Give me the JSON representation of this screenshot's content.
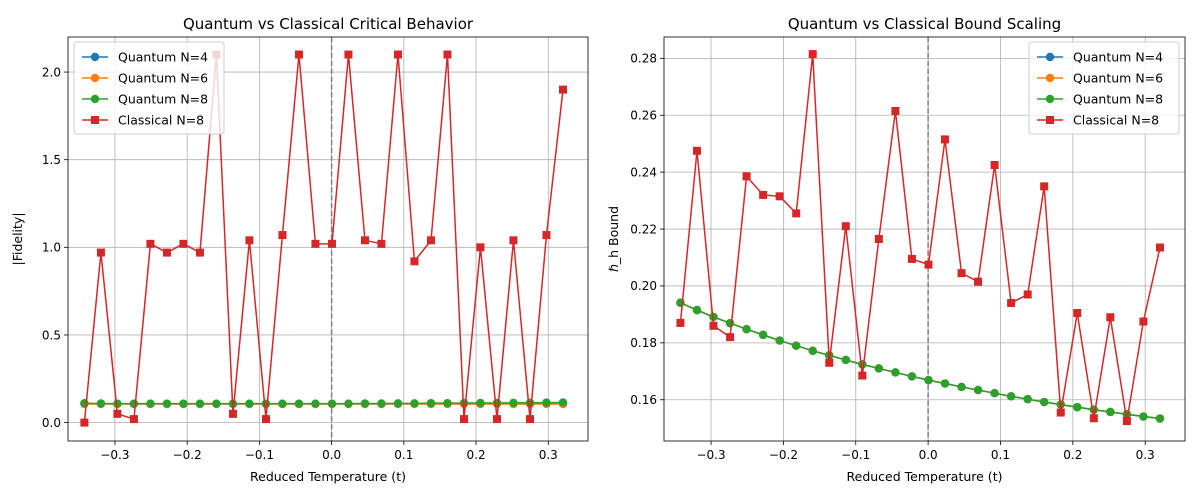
{
  "chart_data": [
    {
      "type": "line",
      "title": "Quantum vs Classical Critical Behavior",
      "xlabel": "Reduced Temperature (t)",
      "ylabel": "|Fidelity|",
      "xlim": [
        -0.365,
        0.355
      ],
      "ylim": [
        -0.105,
        2.2
      ],
      "xticks": [
        -0.3,
        -0.2,
        -0.1,
        0.0,
        0.1,
        0.2,
        0.3
      ],
      "xtick_labels": [
        "−0.3",
        "−0.2",
        "−0.1",
        "0.0",
        "0.1",
        "0.2",
        "0.3"
      ],
      "yticks": [
        0.0,
        0.5,
        1.0,
        1.5,
        2.0
      ],
      "ytick_labels": [
        "0.0",
        "0.5",
        "1.0",
        "1.5",
        "2.0"
      ],
      "grid": true,
      "vline_x": 0,
      "legend_position": "upper-left",
      "x": [
        -0.3423,
        -0.3194,
        -0.2966,
        -0.2737,
        -0.2509,
        -0.228,
        -0.2052,
        -0.1823,
        -0.1595,
        -0.1366,
        -0.1138,
        -0.0909,
        -0.0681,
        -0.0452,
        -0.0224,
        0.0005,
        0.0233,
        0.0462,
        0.069,
        0.0919,
        0.1147,
        0.1376,
        0.1604,
        0.1833,
        0.2061,
        0.229,
        0.2518,
        0.2747,
        0.2975,
        0.3204
      ],
      "series": [
        {
          "name": "Quantum N=4",
          "color": "#1f77b4",
          "marker": "circle",
          "values": [
            0.11,
            0.107,
            0.107,
            0.107,
            0.107,
            0.107,
            0.107,
            0.107,
            0.107,
            0.107,
            0.107,
            0.107,
            0.107,
            0.107,
            0.107,
            0.107,
            0.107,
            0.107,
            0.107,
            0.107,
            0.107,
            0.107,
            0.107,
            0.107,
            0.107,
            0.107,
            0.107,
            0.107,
            0.107,
            0.107
          ]
        },
        {
          "name": "Quantum N=6",
          "color": "#ff7f0e",
          "marker": "circle",
          "values": [
            0.106,
            0.106,
            0.106,
            0.106,
            0.106,
            0.106,
            0.106,
            0.106,
            0.106,
            0.106,
            0.106,
            0.106,
            0.106,
            0.106,
            0.106,
            0.106,
            0.106,
            0.106,
            0.106,
            0.106,
            0.106,
            0.106,
            0.106,
            0.106,
            0.106,
            0.106,
            0.106,
            0.106,
            0.106,
            0.106
          ]
        },
        {
          "name": "Quantum N=8",
          "color": "#2ca02c",
          "marker": "circle",
          "values": [
            0.11,
            0.109,
            0.108,
            0.108,
            0.108,
            0.108,
            0.108,
            0.108,
            0.108,
            0.108,
            0.108,
            0.108,
            0.108,
            0.108,
            0.108,
            0.108,
            0.108,
            0.109,
            0.109,
            0.11,
            0.11,
            0.111,
            0.111,
            0.112,
            0.112,
            0.112,
            0.113,
            0.113,
            0.114,
            0.115
          ]
        },
        {
          "name": "Classical N=8",
          "color": "#d62728",
          "marker": "square",
          "values": [
            0.0,
            0.97,
            0.05,
            0.02,
            1.02,
            0.97,
            1.02,
            0.97,
            2.1,
            0.05,
            1.04,
            0.02,
            1.07,
            2.1,
            1.02,
            1.02,
            2.1,
            1.04,
            1.02,
            2.1,
            0.92,
            1.04,
            2.1,
            0.02,
            1.0,
            0.02,
            1.04,
            0.02,
            1.07,
            1.9
          ]
        }
      ]
    },
    {
      "type": "line",
      "title": "Quantum vs Classical Bound Scaling",
      "xlabel": "Reduced Temperature (t)",
      "ylabel": "ℏ_h Bound",
      "xlim": [
        -0.365,
        0.355
      ],
      "ylim": [
        0.1455,
        0.2875
      ],
      "xticks": [
        -0.3,
        -0.2,
        -0.1,
        0.0,
        0.1,
        0.2,
        0.3
      ],
      "xtick_labels": [
        "−0.3",
        "−0.2",
        "−0.1",
        "0.0",
        "0.1",
        "0.2",
        "0.3"
      ],
      "yticks": [
        0.16,
        0.18,
        0.2,
        0.22,
        0.24,
        0.26,
        0.28
      ],
      "ytick_labels": [
        "0.16",
        "0.18",
        "0.20",
        "0.22",
        "0.24",
        "0.26",
        "0.28"
      ],
      "grid": true,
      "vline_x": 0,
      "legend_position": "upper-right",
      "x": [
        -0.3423,
        -0.3194,
        -0.2966,
        -0.2737,
        -0.2509,
        -0.228,
        -0.2052,
        -0.1823,
        -0.1595,
        -0.1366,
        -0.1138,
        -0.0909,
        -0.0681,
        -0.0452,
        -0.0224,
        0.0005,
        0.0233,
        0.0462,
        0.069,
        0.0919,
        0.1147,
        0.1376,
        0.1604,
        0.1833,
        0.2061,
        0.229,
        0.2518,
        0.2747,
        0.2975,
        0.3204
      ],
      "series": [
        {
          "name": "Quantum N=4",
          "color": "#1f77b4",
          "marker": "circle",
          "values": [
            0.1941,
            0.1915,
            0.1891,
            0.1869,
            0.1848,
            0.1828,
            0.1808,
            0.179,
            0.1772,
            0.1756,
            0.174,
            0.1724,
            0.171,
            0.1696,
            0.1682,
            0.1669,
            0.1657,
            0.1645,
            0.1634,
            0.1623,
            0.1612,
            0.1602,
            0.1592,
            0.1583,
            0.1574,
            0.1565,
            0.1557,
            0.1549,
            0.1541,
            0.1534
          ]
        },
        {
          "name": "Quantum N=6",
          "color": "#ff7f0e",
          "marker": "circle",
          "values": [
            0.1941,
            0.1915,
            0.1891,
            0.1869,
            0.1848,
            0.1828,
            0.1808,
            0.179,
            0.1772,
            0.1756,
            0.174,
            0.1724,
            0.171,
            0.1696,
            0.1682,
            0.1669,
            0.1657,
            0.1645,
            0.1634,
            0.1623,
            0.1612,
            0.1602,
            0.1592,
            0.1583,
            0.1574,
            0.1565,
            0.1557,
            0.1549,
            0.1541,
            0.1534
          ]
        },
        {
          "name": "Quantum N=8",
          "color": "#2ca02c",
          "marker": "circle",
          "values": [
            0.1941,
            0.1915,
            0.1891,
            0.1869,
            0.1848,
            0.1828,
            0.1808,
            0.179,
            0.1772,
            0.1756,
            0.174,
            0.1724,
            0.171,
            0.1696,
            0.1682,
            0.1669,
            0.1657,
            0.1645,
            0.1634,
            0.1623,
            0.1612,
            0.1602,
            0.1592,
            0.1583,
            0.1574,
            0.1565,
            0.1557,
            0.1549,
            0.1541,
            0.1534
          ]
        },
        {
          "name": "Classical N=8",
          "color": "#d62728",
          "marker": "square",
          "values": [
            0.187,
            0.2475,
            0.186,
            0.182,
            0.2385,
            0.232,
            0.2315,
            0.2255,
            0.2815,
            0.173,
            0.221,
            0.1685,
            0.2165,
            0.2615,
            0.2095,
            0.2075,
            0.2515,
            0.2045,
            0.2015,
            0.2425,
            0.194,
            0.197,
            0.235,
            0.1555,
            0.1905,
            0.1535,
            0.189,
            0.1525,
            0.1875,
            0.2135
          ]
        }
      ]
    }
  ]
}
